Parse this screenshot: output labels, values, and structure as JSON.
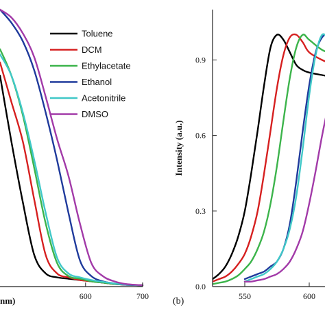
{
  "chart_data": [
    {
      "panel": "a",
      "type": "line",
      "xlabel": "nm)",
      "ylabel": "",
      "xlim": [
        450,
        700
      ],
      "ylim": [
        0,
        1.05
      ],
      "x_ticks": [
        600,
        700
      ],
      "x_tick_labels": [
        "600",
        "700"
      ],
      "grid": false,
      "legend_position": "top-right",
      "series": [
        {
          "name": "Toluene",
          "color": "#000000",
          "x": [
            450,
            470,
            490,
            510,
            530,
            550,
            570,
            590,
            610,
            630,
            650,
            670,
            700
          ],
          "y": [
            0.8,
            0.55,
            0.32,
            0.12,
            0.05,
            0.035,
            0.03,
            0.025,
            0.02,
            0.015,
            0.01,
            0.007,
            0.005
          ]
        },
        {
          "name": "DCM",
          "color": "#d62020",
          "x": [
            450,
            470,
            490,
            510,
            530,
            550,
            570,
            590,
            610,
            630,
            650,
            670,
            700
          ],
          "y": [
            0.85,
            0.7,
            0.55,
            0.33,
            0.12,
            0.05,
            0.035,
            0.025,
            0.02,
            0.015,
            0.01,
            0.007,
            0.005
          ]
        },
        {
          "name": "Ethylacetate",
          "color": "#3cb44b",
          "x": [
            450,
            470,
            490,
            510,
            530,
            550,
            570,
            590,
            610,
            630,
            650,
            670,
            700
          ],
          "y": [
            0.9,
            0.8,
            0.65,
            0.45,
            0.24,
            0.09,
            0.04,
            0.03,
            0.02,
            0.015,
            0.01,
            0.007,
            0.005
          ]
        },
        {
          "name": "Ethanol",
          "color": "#1f3a9c",
          "x": [
            450,
            470,
            490,
            510,
            530,
            550,
            570,
            590,
            610,
            630,
            650,
            670,
            700
          ],
          "y": [
            1.05,
            1.0,
            0.93,
            0.82,
            0.66,
            0.48,
            0.28,
            0.1,
            0.04,
            0.02,
            0.012,
            0.007,
            0.005
          ]
        },
        {
          "name": "Acetonitrile",
          "color": "#40c8c8",
          "x": [
            450,
            470,
            490,
            510,
            530,
            550,
            570,
            590,
            610,
            630,
            650,
            670,
            700
          ],
          "y": [
            0.88,
            0.8,
            0.66,
            0.48,
            0.28,
            0.11,
            0.05,
            0.035,
            0.025,
            0.018,
            0.012,
            0.008,
            0.005
          ]
        },
        {
          "name": "DMSO",
          "color": "#a23aa8",
          "x": [
            450,
            470,
            490,
            510,
            530,
            550,
            570,
            590,
            610,
            630,
            650,
            670,
            700
          ],
          "y": [
            1.05,
            1.02,
            0.96,
            0.87,
            0.72,
            0.56,
            0.42,
            0.24,
            0.09,
            0.04,
            0.02,
            0.01,
            0.005
          ]
        }
      ]
    },
    {
      "panel": "b",
      "type": "line",
      "label": "(b)",
      "xlabel": "",
      "ylabel": "Intensity (a.u.)",
      "xlim": [
        525,
        625
      ],
      "ylim": [
        0,
        1.1
      ],
      "x_ticks": [
        550,
        600
      ],
      "x_tick_labels": [
        "550",
        "600"
      ],
      "y_ticks": [
        0.0,
        0.3,
        0.6,
        0.9
      ],
      "y_tick_labels": [
        "0.0",
        "0.3",
        "0.6",
        "0.9"
      ],
      "grid": false,
      "series": [
        {
          "name": "Toluene",
          "color": "#000000",
          "x": [
            525,
            530,
            535,
            540,
            545,
            550,
            555,
            560,
            565,
            570,
            575,
            580,
            585,
            590,
            595,
            600,
            610,
            620,
            625
          ],
          "y": [
            0.03,
            0.05,
            0.08,
            0.13,
            0.2,
            0.3,
            0.45,
            0.62,
            0.8,
            0.95,
            1.0,
            0.98,
            0.93,
            0.88,
            0.86,
            0.85,
            0.84,
            0.83,
            0.82
          ]
        },
        {
          "name": "DCM",
          "color": "#d62020",
          "x": [
            525,
            530,
            535,
            540,
            545,
            550,
            555,
            560,
            565,
            570,
            575,
            580,
            585,
            590,
            595,
            600,
            610,
            620,
            625
          ],
          "y": [
            0.02,
            0.03,
            0.04,
            0.06,
            0.09,
            0.13,
            0.2,
            0.3,
            0.45,
            0.62,
            0.79,
            0.92,
            0.99,
            1.0,
            0.97,
            0.93,
            0.9,
            0.88,
            0.87
          ]
        },
        {
          "name": "Ethylacetate",
          "color": "#3cb44b",
          "x": [
            525,
            530,
            535,
            540,
            545,
            550,
            555,
            560,
            565,
            570,
            575,
            580,
            585,
            590,
            595,
            600,
            610,
            620,
            625
          ],
          "y": [
            0.01,
            0.015,
            0.02,
            0.03,
            0.045,
            0.07,
            0.1,
            0.15,
            0.22,
            0.33,
            0.48,
            0.66,
            0.83,
            0.95,
            1.0,
            0.98,
            0.94,
            0.92,
            0.91
          ]
        },
        {
          "name": "Ethanol",
          "color": "#1f3a9c",
          "x": [
            550,
            555,
            560,
            565,
            570,
            575,
            580,
            585,
            590,
            595,
            600,
            605,
            610,
            615,
            620,
            625
          ],
          "y": [
            0.03,
            0.04,
            0.05,
            0.06,
            0.08,
            0.1,
            0.15,
            0.25,
            0.42,
            0.62,
            0.8,
            0.93,
            0.99,
            1.0,
            0.96,
            0.92
          ]
        },
        {
          "name": "Acetonitrile",
          "color": "#40c8c8",
          "x": [
            550,
            555,
            560,
            565,
            570,
            575,
            580,
            585,
            590,
            595,
            600,
            605,
            610,
            615,
            620,
            625
          ],
          "y": [
            0.02,
            0.03,
            0.04,
            0.05,
            0.07,
            0.1,
            0.15,
            0.23,
            0.36,
            0.55,
            0.76,
            0.92,
            1.0,
            0.98,
            0.94,
            0.9
          ]
        },
        {
          "name": "DMSO",
          "color": "#a23aa8",
          "x": [
            550,
            555,
            560,
            565,
            570,
            575,
            580,
            585,
            590,
            595,
            600,
            605,
            610,
            615,
            620,
            625
          ],
          "y": [
            0.02,
            0.02,
            0.025,
            0.03,
            0.04,
            0.05,
            0.07,
            0.1,
            0.15,
            0.22,
            0.33,
            0.46,
            0.6,
            0.72,
            0.82,
            0.88
          ]
        }
      ]
    }
  ]
}
